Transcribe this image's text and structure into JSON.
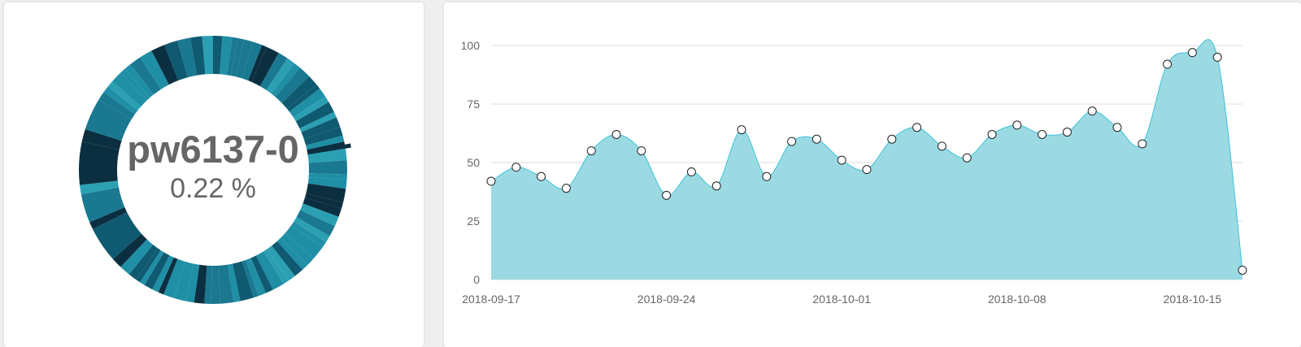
{
  "colors": {
    "palette": [
      "#1f8fa6",
      "#1a7891",
      "#0f5a70",
      "#0b2f40",
      "#2ba0b3"
    ],
    "area_fill": "#9cdae3",
    "area_line": "#3ac3d8",
    "grid": "#dddddd",
    "tick": "#666666",
    "center_text": "#666666"
  },
  "donut": {
    "label": "pw6137-0",
    "value": "0.22 %"
  },
  "chart_data": {
    "type": "area",
    "title": "",
    "xlabel": "",
    "ylabel": "",
    "x": [
      "2018-09-17",
      "2018-09-18",
      "2018-09-19",
      "2018-09-20",
      "2018-09-21",
      "2018-09-22",
      "2018-09-23",
      "2018-09-24",
      "2018-09-25",
      "2018-09-26",
      "2018-09-27",
      "2018-09-28",
      "2018-09-29",
      "2018-09-30",
      "2018-10-01",
      "2018-10-02",
      "2018-10-03",
      "2018-10-04",
      "2018-10-05",
      "2018-10-06",
      "2018-10-07",
      "2018-10-08",
      "2018-10-09",
      "2018-10-10",
      "2018-10-11",
      "2018-10-12",
      "2018-10-13",
      "2018-10-14",
      "2018-10-15",
      "2018-10-16",
      "2018-10-17"
    ],
    "values": [
      42,
      48,
      44,
      39,
      55,
      62,
      55,
      36,
      46,
      40,
      64,
      44,
      59,
      60,
      51,
      47,
      60,
      65,
      57,
      52,
      62,
      66,
      62,
      63,
      72,
      65,
      58,
      92,
      97,
      95,
      4
    ],
    "ylim": [
      0,
      100
    ],
    "yticks": [
      "0",
      "25",
      "50",
      "75",
      "100"
    ],
    "xticks": [
      {
        "date": "2018-09-17",
        "label": "2018-09-17"
      },
      {
        "date": "2018-09-24",
        "label": "2018-09-24"
      },
      {
        "date": "2018-10-01",
        "label": "2018-10-01"
      },
      {
        "date": "2018-10-08",
        "label": "2018-10-08"
      },
      {
        "date": "2018-10-15",
        "label": "2018-10-15"
      }
    ],
    "grid": true,
    "legend": "none",
    "markers": true
  }
}
